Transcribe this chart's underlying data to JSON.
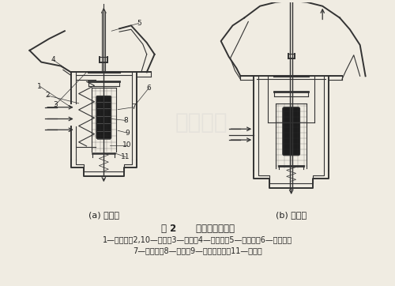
{
  "title": "图 2      蜡式双阀节温器",
  "caption_line1": "1—下支架；2,10—弹簧；3—阀座；4—上支架；5—反推杆；6—主阀门；",
  "caption_line2": "7—橡胶套；8—石蜡；9—感温器外壳；11—副阀门",
  "label_a": "(a) 小循环",
  "label_b": "(b) 大循环",
  "bg_color": "#f0ece2",
  "line_color": "#333333",
  "text_color": "#222222",
  "watermark_color": "#d0ccc0",
  "fig_width": 5.0,
  "fig_height": 3.62,
  "dpi": 100
}
